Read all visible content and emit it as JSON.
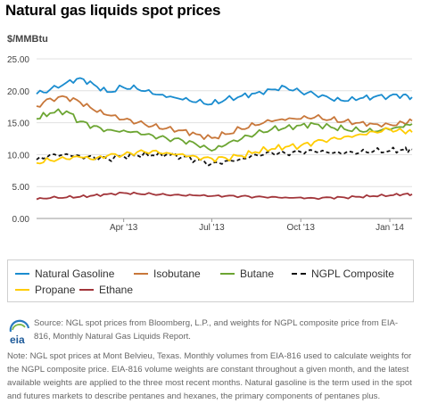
{
  "chart_data": {
    "type": "line",
    "title": "Natural gas liquids spot prices",
    "ylabel": "$/MMBtu",
    "xlabel": "",
    "ylim": [
      0,
      25
    ],
    "y_ticks": [
      "0.00",
      "5.00",
      "10.00",
      "15.00",
      "20.00",
      "25.00"
    ],
    "x_ticks": [
      "Apr '13",
      "Jul '13",
      "Oct '13",
      "Jan '14"
    ],
    "x_range": [
      "2013-01-01",
      "2014-01-24"
    ],
    "grid": true,
    "legend_position": "bottom",
    "x": [
      "2013-01-01",
      "2013-01-15",
      "2013-02-01",
      "2013-02-15",
      "2013-03-01",
      "2013-03-15",
      "2013-04-01",
      "2013-04-15",
      "2013-05-01",
      "2013-05-15",
      "2013-06-01",
      "2013-06-15",
      "2013-07-01",
      "2013-07-15",
      "2013-08-01",
      "2013-08-15",
      "2013-09-01",
      "2013-09-15",
      "2013-10-01",
      "2013-10-15",
      "2013-11-01",
      "2013-11-15",
      "2013-12-01",
      "2013-12-15",
      "2014-01-01",
      "2014-01-15",
      "2014-01-24"
    ],
    "series": [
      {
        "name": "Natural Gasoline",
        "color": "#1a8ccf",
        "dashed": false,
        "values": [
          19.5,
          20.2,
          21.3,
          22.0,
          21.0,
          19.8,
          20.5,
          20.3,
          19.5,
          19.0,
          18.6,
          18.2,
          17.9,
          18.6,
          19.2,
          19.6,
          20.2,
          20.6,
          19.8,
          19.5,
          18.7,
          18.4,
          18.8,
          19.0,
          19.2,
          19.4,
          19.0
        ]
      },
      {
        "name": "Isobutane",
        "color": "#c8773a",
        "dashed": false,
        "values": [
          17.6,
          18.8,
          19.0,
          18.2,
          17.0,
          16.2,
          15.5,
          15.0,
          14.5,
          14.1,
          13.8,
          13.2,
          12.6,
          13.2,
          14.0,
          14.6,
          15.2,
          15.4,
          15.6,
          15.8,
          15.5,
          15.2,
          15.0,
          14.8,
          14.7,
          15.0,
          15.3
        ]
      },
      {
        "name": "Butane",
        "color": "#6ca532",
        "dashed": false,
        "values": [
          15.6,
          16.5,
          16.8,
          15.2,
          14.5,
          13.9,
          13.8,
          13.6,
          13.0,
          12.6,
          12.2,
          11.6,
          10.6,
          11.5,
          12.5,
          13.2,
          14.0,
          14.2,
          14.6,
          14.8,
          14.3,
          14.0,
          13.7,
          13.6,
          13.9,
          14.3,
          14.8
        ]
      },
      {
        "name": "NGPL Composite",
        "color": "#111111",
        "dashed": true,
        "values": [
          9.2,
          10.0,
          10.1,
          9.8,
          9.6,
          9.4,
          9.7,
          9.9,
          9.9,
          10.0,
          9.7,
          9.2,
          8.6,
          9.0,
          9.4,
          10.0,
          10.3,
          10.2,
          10.4,
          10.5,
          10.2,
          10.2,
          10.3,
          10.5,
          10.6,
          10.8,
          10.8
        ]
      },
      {
        "name": "Propane",
        "color": "#ffcc00",
        "dashed": false,
        "values": [
          8.7,
          9.1,
          9.3,
          9.6,
          9.2,
          9.8,
          10.0,
          10.4,
          10.6,
          10.3,
          10.1,
          9.7,
          9.4,
          9.5,
          9.8,
          10.4,
          10.9,
          11.2,
          11.4,
          12.0,
          12.5,
          12.8,
          13.2,
          13.6,
          14.0,
          13.6,
          13.5
        ]
      },
      {
        "name": "Ethane",
        "color": "#a2353a",
        "dashed": false,
        "values": [
          3.0,
          3.2,
          3.3,
          3.4,
          3.6,
          3.8,
          4.0,
          3.9,
          3.8,
          3.7,
          3.6,
          3.6,
          3.5,
          3.5,
          3.5,
          3.4,
          3.4,
          3.3,
          3.3,
          3.2,
          3.3,
          3.3,
          3.4,
          3.5,
          3.6,
          3.8,
          3.8
        ]
      }
    ]
  },
  "legend": [
    {
      "label": "Natural Gasoline",
      "color": "#1a8ccf",
      "dashed": false
    },
    {
      "label": "Isobutane",
      "color": "#c8773a",
      "dashed": false
    },
    {
      "label": "Butane",
      "color": "#6ca532",
      "dashed": false
    },
    {
      "label": "NGPL Composite",
      "color": "#111111",
      "dashed": true
    },
    {
      "label": "Propane",
      "color": "#ffcc00",
      "dashed": false
    },
    {
      "label": "Ethane",
      "color": "#a2353a",
      "dashed": false
    }
  ],
  "source": {
    "logo_text": "eia",
    "text": "Source: NGL spot prices from Bloomberg, L.P., and weights for NGPL composite price from EIA-816, Monthly Natural Gas Liquids Report."
  },
  "note": "Note: NGL spot prices at Mont Belvieu, Texas. Monthly volumes from EIA-816 used to calculate weights for the NGPL composite price. EIA-816 volume weights are constant throughout a given month, and the latest available weights are applied to the three most recent months. Natural gasoline is the term used in the spot and futures markets to describe pentanes and hexanes, the primary components of pentanes plus."
}
